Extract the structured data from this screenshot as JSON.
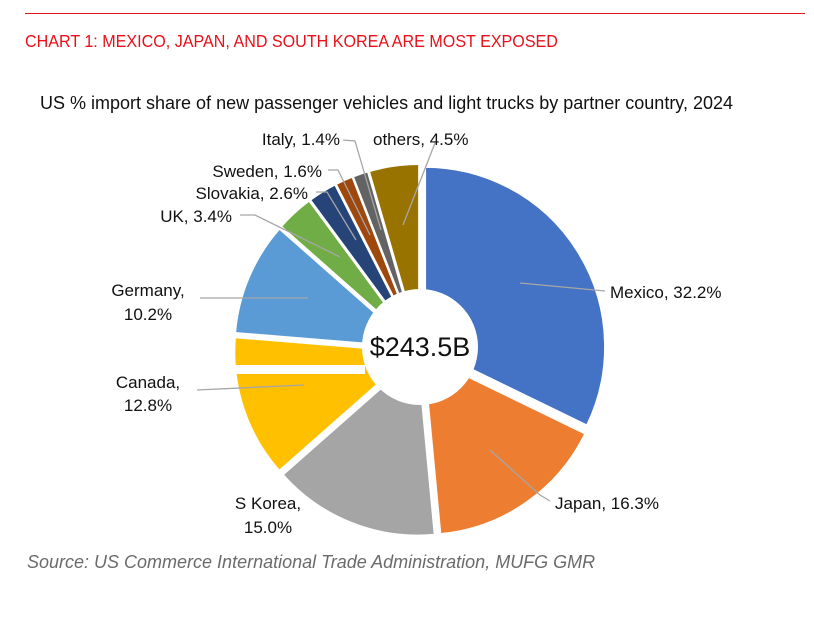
{
  "header": "CHART 1: MEXICO, JAPAN, AND SOUTH KOREA ARE MOST EXPOSED",
  "source": "Source: US Commerce International Trade Administration, MUFG GMR",
  "chart_data": {
    "type": "pie",
    "donut": true,
    "title": "US % import share of new passenger vehicles and light trucks by partner country, 2024",
    "center_label": "$243.5B",
    "unit": "%",
    "categories": [
      "Mexico",
      "Japan",
      "S Korea",
      "Canada",
      "Germany",
      "UK",
      "Slovakia",
      "Sweden",
      "Italy",
      "others"
    ],
    "values": [
      32.2,
      16.3,
      15.0,
      12.8,
      10.2,
      3.4,
      2.6,
      1.6,
      1.4,
      4.5
    ],
    "labels": [
      "Mexico, 32.2%",
      "Japan, 16.3%",
      "S Korea, 15.0%",
      "Canada, 12.8%",
      "Germany, 10.2%",
      "UK, 3.4%",
      "Slovakia, 2.6%",
      "Sweden, 1.6%",
      "Italy, 1.4%",
      "others, 4.5%"
    ],
    "colors": [
      "#4472C4",
      "#ED7D31",
      "#A5A5A5",
      "#FFC000",
      "#5B9BD5",
      "#70AD47",
      "#264478",
      "#9E480E",
      "#636363",
      "#997300"
    ]
  }
}
